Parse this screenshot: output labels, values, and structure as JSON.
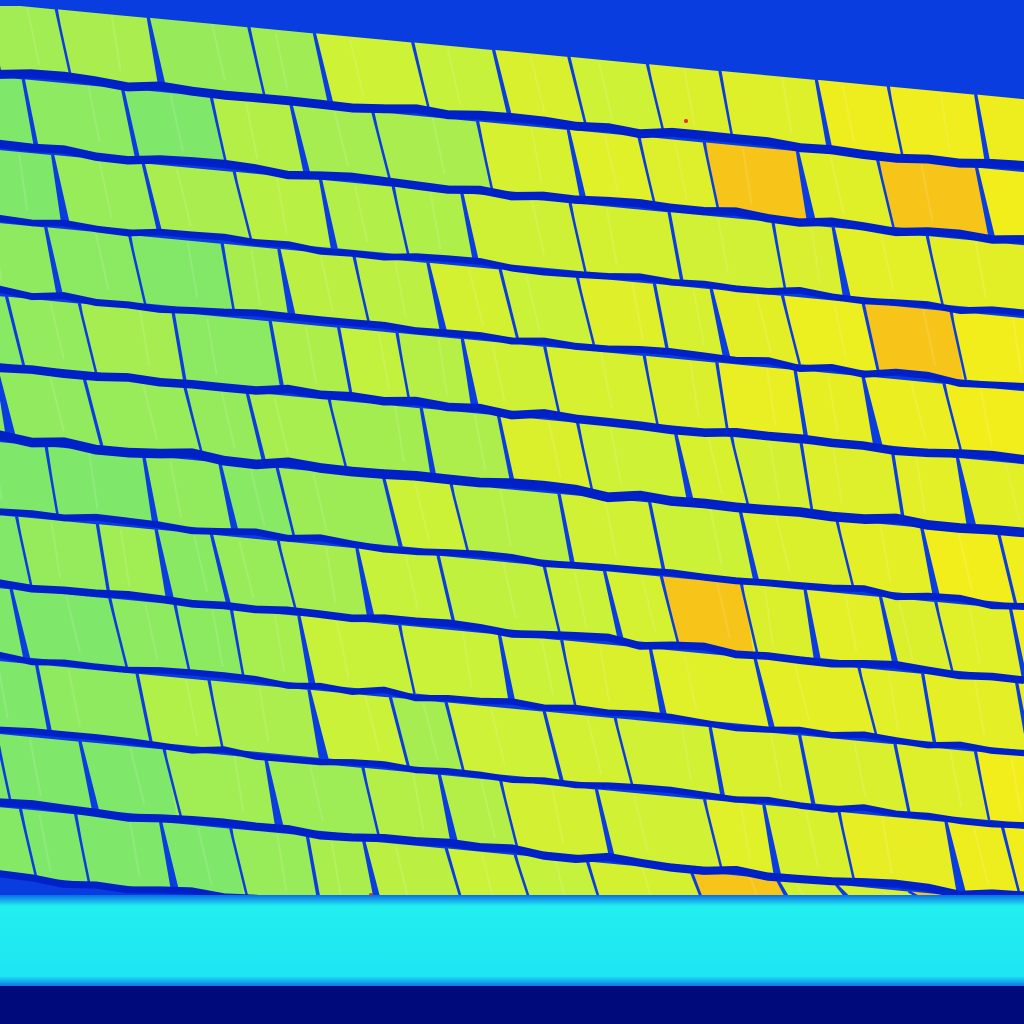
{
  "image": {
    "subject": "",
    "palette": {
      "shingle_cool": "#7fe86a",
      "shingle_mid": "#c8f23a",
      "shingle_warm": "#f2ee1c",
      "shingle_hot": "#f7c41a",
      "gap_shadow": "#0a3de0",
      "gap_deep": "#0020c8",
      "fascia_board": "#22eef0",
      "fascia_edge": "#0a6ee8",
      "bottom_band": "#000a7a",
      "speck": "#e8301a"
    }
  }
}
